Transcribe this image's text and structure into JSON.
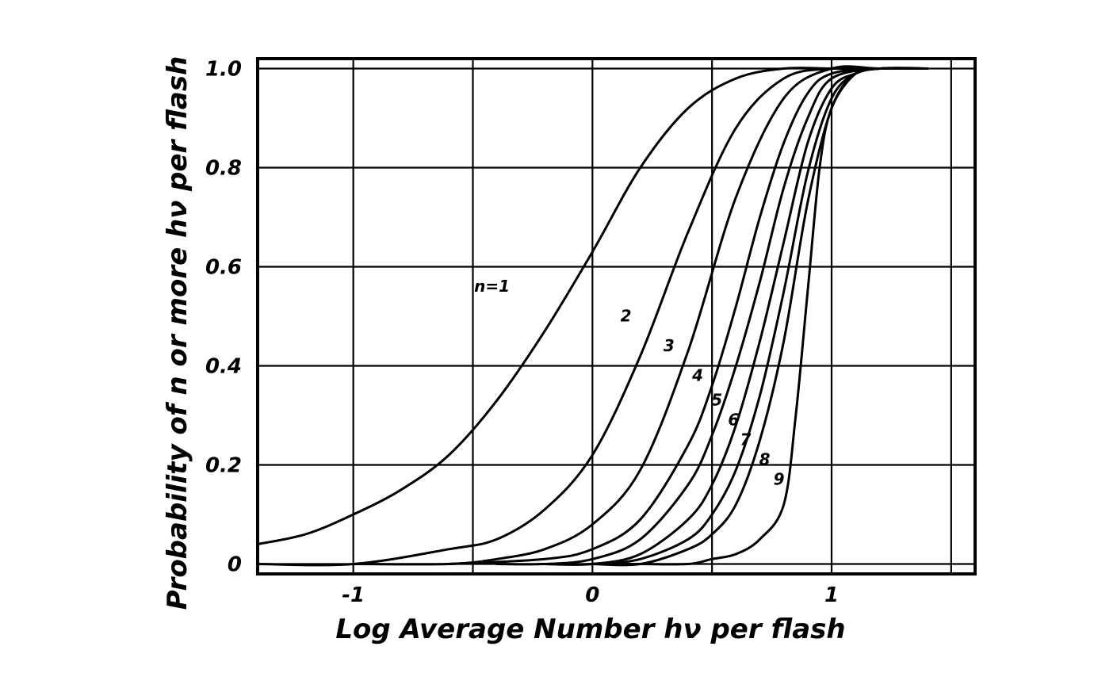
{
  "chart_data": {
    "type": "line",
    "xlabel": "Log Average Number hν per flash",
    "ylabel": "Probability of n or more hν per flash",
    "xlim": [
      -1.4,
      1.6
    ],
    "ylim": [
      -0.02,
      1.02
    ],
    "grid": true,
    "x_ticks": [
      {
        "value": -1,
        "label": "-1"
      },
      {
        "value": 0,
        "label": "0"
      },
      {
        "value": 1,
        "label": "1"
      }
    ],
    "y_ticks": [
      {
        "value": 0,
        "label": "0"
      },
      {
        "value": 0.2,
        "label": "0.2"
      },
      {
        "value": 0.4,
        "label": "0.4"
      },
      {
        "value": 0.6,
        "label": "0.6"
      },
      {
        "value": 0.8,
        "label": "0.8"
      },
      {
        "value": 1.0,
        "label": "1.0"
      }
    ],
    "series": [
      {
        "name": "n=1",
        "x": [
          -1.4,
          -1.2,
          -1.0,
          -0.8,
          -0.6,
          -0.4,
          -0.2,
          0.0,
          0.2,
          0.4,
          0.6,
          0.8,
          1.0,
          1.2,
          1.4
        ],
        "y": [
          0.04,
          0.06,
          0.1,
          0.15,
          0.22,
          0.33,
          0.47,
          0.63,
          0.8,
          0.92,
          0.98,
          1.0,
          1.0,
          1.0,
          1.0
        ]
      },
      {
        "name": "2",
        "x": [
          -1.4,
          -1.0,
          -0.6,
          -0.4,
          -0.2,
          0.0,
          0.2,
          0.4,
          0.6,
          0.8,
          1.0,
          1.2,
          1.4
        ],
        "y": [
          0.0,
          0.0,
          0.03,
          0.05,
          0.11,
          0.22,
          0.42,
          0.67,
          0.88,
          0.98,
          1.0,
          1.0,
          1.0
        ]
      },
      {
        "name": "3",
        "x": [
          -1.0,
          -0.6,
          -0.4,
          -0.2,
          0.0,
          0.2,
          0.4,
          0.6,
          0.8,
          1.0,
          1.2,
          1.4
        ],
        "y": [
          0.0,
          0.0,
          0.01,
          0.03,
          0.08,
          0.19,
          0.43,
          0.74,
          0.94,
          1.0,
          1.0,
          1.0
        ]
      },
      {
        "name": "4",
        "x": [
          -0.6,
          -0.2,
          0.0,
          0.2,
          0.4,
          0.5,
          0.6,
          0.7,
          0.8,
          0.9,
          1.0,
          1.2,
          1.4
        ],
        "y": [
          0.0,
          0.01,
          0.03,
          0.09,
          0.24,
          0.36,
          0.52,
          0.7,
          0.85,
          0.95,
          0.99,
          1.0,
          1.0
        ]
      },
      {
        "name": "5",
        "x": [
          -0.4,
          -0.2,
          0.0,
          0.2,
          0.4,
          0.5,
          0.6,
          0.7,
          0.8,
          0.9,
          1.0,
          1.2,
          1.4
        ],
        "y": [
          0.0,
          0.0,
          0.01,
          0.05,
          0.16,
          0.26,
          0.4,
          0.57,
          0.76,
          0.9,
          0.98,
          1.0,
          1.0
        ]
      },
      {
        "name": "6",
        "x": [
          -0.2,
          0.0,
          0.2,
          0.4,
          0.5,
          0.6,
          0.7,
          0.8,
          0.9,
          1.0,
          1.1,
          1.2,
          1.4
        ],
        "y": [
          0.0,
          0.0,
          0.02,
          0.09,
          0.16,
          0.28,
          0.45,
          0.65,
          0.85,
          0.96,
          0.99,
          1.0,
          1.0
        ]
      },
      {
        "name": "7",
        "x": [
          -0.2,
          0.0,
          0.2,
          0.4,
          0.5,
          0.6,
          0.7,
          0.8,
          0.9,
          1.0,
          1.1,
          1.2,
          1.4
        ],
        "y": [
          0.0,
          0.0,
          0.01,
          0.05,
          0.1,
          0.19,
          0.34,
          0.55,
          0.79,
          0.94,
          0.99,
          1.0,
          1.0
        ]
      },
      {
        "name": "8",
        "x": [
          0.0,
          0.2,
          0.4,
          0.5,
          0.6,
          0.7,
          0.8,
          0.9,
          1.0,
          1.1,
          1.2,
          1.4
        ],
        "y": [
          0.0,
          0.0,
          0.03,
          0.06,
          0.12,
          0.25,
          0.45,
          0.73,
          0.92,
          0.99,
          1.0,
          1.0
        ]
      },
      {
        "name": "9",
        "x": [
          0.0,
          0.2,
          0.4,
          0.5,
          0.6,
          0.7,
          0.8,
          0.85,
          0.9,
          0.95,
          1.0,
          1.1,
          1.2,
          1.4
        ],
        "y": [
          0.0,
          0.0,
          0.0,
          0.01,
          0.02,
          0.05,
          0.12,
          0.3,
          0.55,
          0.8,
          0.92,
          0.99,
          1.0,
          1.0
        ]
      }
    ],
    "curve_labels": [
      {
        "label": "n=1",
        "x": -0.42,
        "y": 0.55
      },
      {
        "label": "2",
        "x": 0.14,
        "y": 0.49
      },
      {
        "label": "3",
        "x": 0.32,
        "y": 0.43
      },
      {
        "label": "4",
        "x": 0.44,
        "y": 0.37
      },
      {
        "label": "5",
        "x": 0.52,
        "y": 0.32
      },
      {
        "label": "6",
        "x": 0.59,
        "y": 0.28
      },
      {
        "label": "7",
        "x": 0.64,
        "y": 0.24
      },
      {
        "label": "8",
        "x": 0.72,
        "y": 0.2
      },
      {
        "label": "9",
        "x": 0.78,
        "y": 0.16
      }
    ]
  }
}
